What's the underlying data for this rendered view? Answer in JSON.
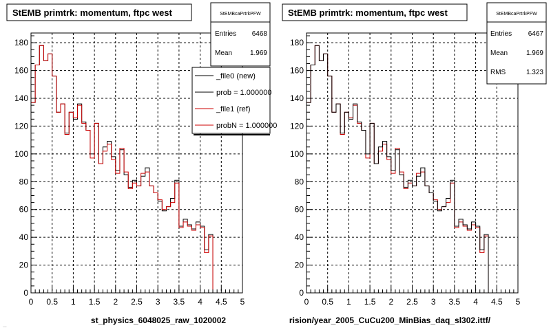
{
  "panels": [
    {
      "title": "StEMB primtrk: momentum, ftpc west",
      "xlabel": "st_physics_6048025_raw_1020002",
      "stats": {
        "name": "StEMBcaPrtrkPFW",
        "rows": [
          {
            "label": "Entries",
            "value": "6468"
          },
          {
            "label": "Mean",
            "value": "1.969"
          }
        ]
      },
      "legend": [
        {
          "label": "_file0 (new)",
          "color": "#000000"
        },
        {
          "label": "prob = 1.000000",
          "color": "#000000"
        },
        {
          "label": "_file1 (ref)",
          "color": "#cc0000"
        },
        {
          "label": "probN = 1.000000",
          "color": "#cc0000"
        }
      ]
    },
    {
      "title": "StEMB primtrk: momentum, ftpc west",
      "xlabel": "rision/year_2005_CuCu200_MinBias_daq_sl302.ittf/",
      "stats": {
        "name": "StEMBcaPrtrkPFW",
        "rows": [
          {
            "label": "Entries",
            "value": "6467"
          },
          {
            "label": "Mean",
            "value": "1.969"
          },
          {
            "label": "RMS",
            "value": "1.323"
          }
        ]
      }
    }
  ],
  "footer_text": "...",
  "chart_data": [
    {
      "type": "line",
      "title": "StEMB primtrk: momentum, ftpc west",
      "xlabel": "st_physics_6048025_raw_1020002",
      "ylabel": "",
      "xlim": [
        0,
        5
      ],
      "ylim": [
        0,
        187
      ],
      "grid": true,
      "bin_edges_start": 0,
      "bin_width": 0.1,
      "xticks": [
        "0",
        "0.5",
        "1",
        "1.5",
        "2",
        "2.5",
        "3",
        "3.5",
        "4",
        "4.5",
        "5"
      ],
      "yticks": [
        "0",
        "20",
        "40",
        "60",
        "80",
        "100",
        "120",
        "140",
        "160",
        "180"
      ],
      "legend_position": "top-right",
      "series": [
        {
          "name": "_file0 (new)",
          "color": "#000000",
          "values": [
            137,
            164,
            178,
            167,
            172,
            156,
            130,
            136,
            115,
            130,
            125,
            136,
            123,
            117,
            100,
            122,
            93,
            105,
            109,
            98,
            88,
            103,
            85,
            76,
            81,
            77,
            84,
            90,
            77,
            72,
            66,
            59,
            62,
            68,
            81,
            48,
            53,
            49,
            46,
            51,
            48,
            31,
            42
          ]
        },
        {
          "name": "_file1 (ref)",
          "color": "#cc0000",
          "values": [
            137,
            164,
            178,
            167,
            172,
            156,
            130,
            136,
            114,
            130,
            126,
            135,
            122,
            117,
            97,
            122,
            93,
            102,
            107,
            96,
            86,
            104,
            87,
            75,
            79,
            77,
            86,
            87,
            77,
            72,
            67,
            60,
            62,
            65,
            79,
            47,
            51,
            48,
            45,
            49,
            47,
            29,
            41
          ]
        }
      ]
    },
    {
      "type": "line",
      "title": "StEMB primtrk: momentum, ftpc west",
      "xlabel": "rision/year_2005_CuCu200_MinBias_daq_sl302.ittf/",
      "ylabel": "",
      "xlim": [
        0,
        5
      ],
      "ylim": [
        0,
        187
      ],
      "grid": true,
      "bin_edges_start": 0,
      "bin_width": 0.1,
      "xticks": [
        "0",
        "0.5",
        "1",
        "1.5",
        "2",
        "2.5",
        "3",
        "3.5",
        "4",
        "4.5",
        "5"
      ],
      "yticks": [
        "0",
        "20",
        "40",
        "60",
        "80",
        "100",
        "120",
        "140",
        "160",
        "180"
      ],
      "series": [
        {
          "name": "",
          "color": "#cc0000",
          "values": [
            137,
            164,
            178,
            167,
            172,
            156,
            130,
            136,
            114,
            130,
            126,
            135,
            122,
            117,
            97,
            122,
            93,
            102,
            107,
            96,
            86,
            104,
            87,
            75,
            79,
            77,
            86,
            87,
            77,
            72,
            67,
            60,
            62,
            65,
            79,
            47,
            51,
            48,
            45,
            49,
            47,
            29,
            41
          ]
        },
        {
          "name": "",
          "color": "#000000",
          "values": [
            137,
            164,
            178,
            167,
            172,
            156,
            130,
            136,
            115,
            130,
            125,
            136,
            123,
            117,
            100,
            122,
            93,
            105,
            109,
            98,
            88,
            103,
            85,
            76,
            81,
            77,
            84,
            90,
            77,
            72,
            66,
            59,
            62,
            68,
            81,
            48,
            53,
            49,
            46,
            51,
            48,
            31,
            42
          ]
        }
      ]
    }
  ]
}
